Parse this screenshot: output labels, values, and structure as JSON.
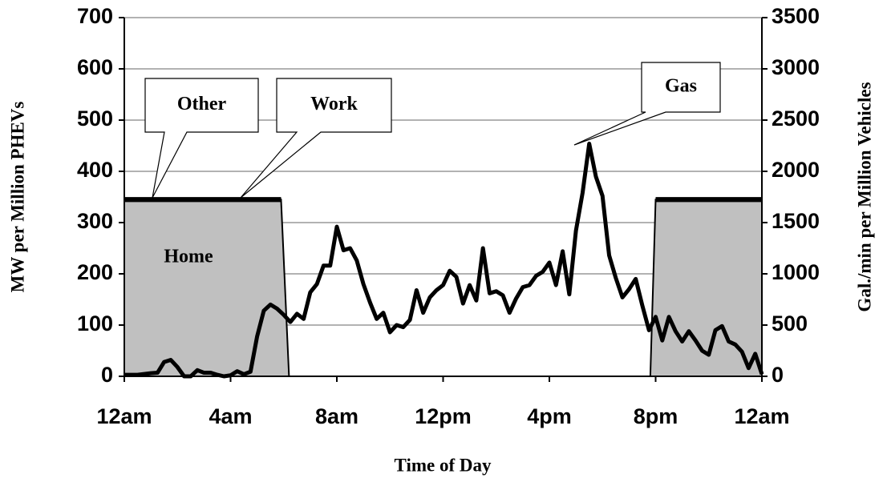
{
  "chart_data": {
    "type": "line",
    "x_label": "Time of Day",
    "y_label": "MW per Million PHEVs",
    "y2_label": "Gal./min per Million Vehicles",
    "xlim": [
      0,
      24
    ],
    "xticks": [
      {
        "value": 0,
        "label": "12am"
      },
      {
        "value": 4,
        "label": "4am"
      },
      {
        "value": 8,
        "label": "8am"
      },
      {
        "value": 12,
        "label": "12pm"
      },
      {
        "value": 16,
        "label": "4pm"
      },
      {
        "value": 20,
        "label": "8pm"
      },
      {
        "value": 24,
        "label": "12am"
      }
    ],
    "ylim": [
      0,
      700
    ],
    "yticks": [
      0,
      100,
      200,
      300,
      400,
      500,
      600,
      700
    ],
    "y2lim": [
      0,
      3500
    ],
    "y2ticks": [
      0,
      500,
      1000,
      1500,
      2000,
      2500,
      3000,
      3500
    ],
    "grid": true,
    "series": [
      {
        "name": "Home",
        "type": "area",
        "color": "#c0c0c0",
        "x": [
          0,
          5.9,
          6.2,
          19.8,
          20,
          24
        ],
        "values": [
          345,
          345,
          0,
          0,
          345,
          345
        ]
      },
      {
        "name": "Other",
        "type": "line",
        "color": "#000000",
        "x": [
          0,
          5.9,
          13,
          20,
          24
        ],
        "values": [
          345,
          345,
          null,
          345,
          345
        ]
      },
      {
        "name": "Work",
        "type": "line",
        "color": "#000000",
        "x": [
          0,
          5.9,
          13,
          20,
          24
        ],
        "values": [
          345,
          345,
          null,
          345,
          345
        ]
      },
      {
        "name": "Gas",
        "type": "line",
        "axis": "y2",
        "color": "#000000",
        "x": [
          0,
          0.5,
          1,
          1.25,
          1.5,
          1.75,
          2,
          2.25,
          2.5,
          2.75,
          3,
          3.25,
          3.5,
          3.75,
          4,
          4.25,
          4.5,
          4.75,
          5,
          5.25,
          5.5,
          5.75,
          6,
          6.25,
          6.5,
          6.75,
          7,
          7.25,
          7.5,
          7.75,
          8,
          8.25,
          8.5,
          8.75,
          9,
          9.25,
          9.5,
          9.75,
          10,
          10.25,
          10.5,
          10.75,
          11,
          11.25,
          11.5,
          11.75,
          12,
          12.25,
          12.5,
          12.75,
          13,
          13.25,
          13.5,
          13.75,
          14,
          14.25,
          14.5,
          14.75,
          15,
          15.25,
          15.5,
          15.75,
          16,
          16.25,
          16.5,
          16.75,
          17,
          17.25,
          17.5,
          17.75,
          18,
          18.25,
          18.5,
          18.75,
          19,
          19.25,
          19.5,
          19.75,
          20,
          20.25,
          20.5,
          20.75,
          21,
          21.25,
          21.5,
          21.75,
          22,
          22.25,
          22.5,
          22.75,
          23,
          23.25,
          23.5,
          23.75,
          24
        ],
        "values": [
          15,
          15,
          30,
          35,
          140,
          160,
          90,
          0,
          0,
          60,
          35,
          35,
          15,
          0,
          10,
          50,
          20,
          45,
          390,
          640,
          700,
          660,
          600,
          530,
          610,
          560,
          820,
          900,
          1080,
          1080,
          1460,
          1230,
          1250,
          1130,
          900,
          720,
          560,
          620,
          430,
          500,
          480,
          550,
          840,
          620,
          770,
          840,
          890,
          1030,
          970,
          710,
          890,
          740,
          1250,
          810,
          830,
          790,
          620,
          760,
          870,
          890,
          980,
          1020,
          1110,
          890,
          1220,
          800,
          1420,
          1790,
          2270,
          1950,
          1760,
          1180,
          960,
          770,
          850,
          950,
          690,
          450,
          580,
          350,
          580,
          440,
          340,
          440,
          350,
          250,
          210,
          450,
          490,
          340,
          310,
          240,
          80,
          220,
          20
        ]
      }
    ]
  }
}
